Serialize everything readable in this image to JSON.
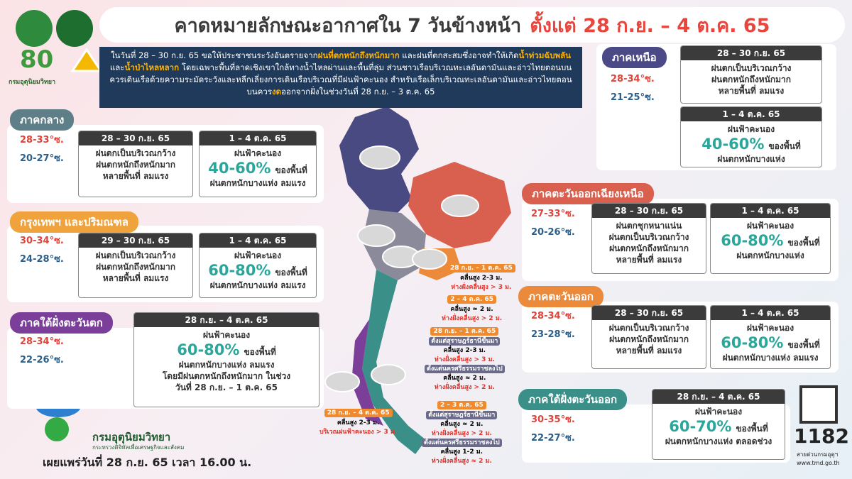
{
  "header": {
    "title": "คาดหมายลักษณะอากาศใน 7 วันข้างหน้า",
    "period": "ตั้งแต่ 28 ก.ย. – 4 ต.ค. 65",
    "logo_number": "80",
    "logo_caption": "กรมอุตุนิยมวิทยา"
  },
  "warning": {
    "segments": [
      {
        "text": "ในวันที่ 28 – 30 ก.ย. 65 ขอให้ประชาชนระวังอันตรายจาก",
        "highlight": false
      },
      {
        "text": "ฝนที่ตกหนักถึงหนักมาก",
        "highlight": true
      },
      {
        "text": " และฝนที่ตกสะสมซึ่งอาจทำให้เกิด",
        "highlight": false
      },
      {
        "text": "น้ำท่วมฉับพลัน",
        "highlight": true
      },
      {
        "text": "และ",
        "highlight": false
      },
      {
        "text": "น้ำป่าไหลหลาก",
        "highlight": true
      },
      {
        "text": " โดยเฉพาะพื้นที่ลาดเชิงเขาใกล้ทางน้ำไหลผ่านและพื้นที่ลุ่ม ส่วนชาวเรือบริเวณทะเลอันดามันและอ่าวไทยตอนบน ควรเดินเรือด้วยความระมัดระวังและหลีกเลี่ยงการเดินเรือบริเวณที่มีฝนฟ้าคะนอง สำหรับเรือเล็กบริเวณทะเลอันดามันและอ่าวไทยตอนบนควร",
        "highlight": false
      },
      {
        "text": "งด",
        "highlight": true
      },
      {
        "text": "ออกจากฝั่งในช่วงวันที่ 28 ก.ย. – 3 ต.ค. 65",
        "highlight": false
      }
    ]
  },
  "regions": [
    {
      "name": "ภาคเหนือ",
      "color": "#4b4a86",
      "temp_max": "28-34°ซ.",
      "temp_min": "21-25°ซ.",
      "forecasts": [
        {
          "period": "28 – 30 ก.ย. 65",
          "lines": [
            "ฝนตกเป็นบริเวณกว้าง",
            "ฝนตกหนักถึงหนักมาก",
            "หลายพื้นที่ ลมแรง"
          ]
        },
        {
          "period": "1 – 4 ต.ค. 65",
          "lines": [
            "ฝนฟ้าคะนอง"
          ],
          "percent": "40-60%",
          "percent_suffix": "ของพื้นที่",
          "notes": [
            "ฝนตกหนักบางแห่ง"
          ]
        }
      ]
    },
    {
      "name": "ภาคกลาง",
      "color": "#5f7f88",
      "temp_max": "28-33°ซ.",
      "temp_min": "20-27°ซ.",
      "forecasts": [
        {
          "period": "28 – 30 ก.ย. 65",
          "lines": [
            "ฝนตกเป็นบริเวณกว้าง",
            "ฝนตกหนักถึงหนักมาก",
            "หลายพื้นที่ ลมแรง"
          ]
        },
        {
          "period": "1 – 4 ต.ค. 65",
          "lines": [
            "ฝนฟ้าคะนอง"
          ],
          "percent": "40-60%",
          "percent_suffix": "ของพื้นที่",
          "notes": [
            "ฝนตกหนักบางแห่ง ลมแรง"
          ]
        }
      ]
    },
    {
      "name": "กรุงเทพฯ และปริมณฑล",
      "color": "#f0a23c",
      "temp_max": "30-34°ซ.",
      "temp_min": "24-28°ซ.",
      "forecasts": [
        {
          "period": "29 – 30 ก.ย. 65",
          "lines": [
            "ฝนตกเป็นบริเวณกว้าง",
            "ฝนตกหนักถึงหนักมาก",
            "หลายพื้นที่ ลมแรง"
          ]
        },
        {
          "period": "1 – 4 ต.ค. 65",
          "lines": [
            "ฝนฟ้าคะนอง"
          ],
          "percent": "60-80%",
          "percent_suffix": "ของพื้นที่",
          "notes": [
            "ฝนตกหนักบางแห่ง ลมแรง"
          ]
        }
      ]
    },
    {
      "name": "ภาคใต้ฝั่งตะวันตก",
      "color": "#7b3f99",
      "temp_max": "28-34°ซ.",
      "temp_min": "22-26°ซ.",
      "forecasts": [
        {
          "period": "28 ก.ย. – 4 ต.ค. 65",
          "lines": [
            "ฝนฟ้าคะนอง"
          ],
          "percent": "60-80%",
          "percent_suffix": "ของพื้นที่",
          "notes": [
            "ฝนตกหนักบางแห่ง ลมแรง",
            "โดยมีฝนตกหนักถึงหนักมาก ในช่วง",
            "วันที่ 28 ก.ย. – 1 ต.ค. 65"
          ]
        }
      ]
    },
    {
      "name": "ภาคตะวันออกเฉียงเหนือ",
      "color": "#d9604f",
      "temp_max": "27-33°ซ.",
      "temp_min": "20-26°ซ.",
      "forecasts": [
        {
          "period": "28 – 30 ก.ย. 65",
          "lines": [
            "ฝนตกชุกหนาแน่น",
            "ฝนตกเป็นบริเวณกว้าง",
            "ฝนตกหนักถึงหนักมาก",
            "หลายพื้นที่ ลมแรง"
          ]
        },
        {
          "period": "1 – 4 ต.ค. 65",
          "lines": [
            "ฝนฟ้าคะนอง"
          ],
          "percent": "60-80%",
          "percent_suffix": "ของพื้นที่",
          "notes": [
            "ฝนตกหนักบางแห่ง"
          ]
        }
      ]
    },
    {
      "name": "ภาคตะวันออก",
      "color": "#ea8a3a",
      "temp_max": "28-34°ซ.",
      "temp_min": "23-28°ซ.",
      "forecasts": [
        {
          "period": "28 – 30 ก.ย. 65",
          "lines": [
            "ฝนตกเป็นบริเวณกว้าง",
            "ฝนตกหนักถึงหนักมาก",
            "หลายพื้นที่ ลมแรง"
          ]
        },
        {
          "period": "1 – 4 ต.ค. 65",
          "lines": [
            "ฝนฟ้าคะนอง"
          ],
          "percent": "60-80%",
          "percent_suffix": "ของพื้นที่",
          "notes": [
            "ฝนตกหนักบางแห่ง ลมแรง"
          ]
        }
      ]
    },
    {
      "name": "ภาคใต้ฝั่งตะวันออก",
      "color": "#3a8f88",
      "temp_max": "30-35°ซ.",
      "temp_min": "22-27°ซ.",
      "forecasts": [
        {
          "period": "28 ก.ย. – 4 ต.ค. 65",
          "lines": [
            "ฝนฟ้าคะนอง"
          ],
          "percent": "60-70%",
          "percent_suffix": "ของพื้นที่",
          "notes": [
            "ฝนตกหนักบางแห่ง ตลอดช่วง"
          ]
        }
      ]
    }
  ],
  "sea_notes": [
    {
      "title": "28 ก.ย. – 1 ต.ค. 65",
      "lines": [
        {
          "text": "คลื่นสูง 2-3 ม.",
          "kind": "wave"
        },
        {
          "text": "ห่างฝั่งคลื่นสูง > 3 ม.",
          "kind": "offshore"
        }
      ]
    },
    {
      "title": "2 – 4 ต.ค. 65",
      "lines": [
        {
          "text": "คลื่นสูง ≈ 2 ม.",
          "kind": "wave"
        },
        {
          "text": "ห่างฝั่งคลื่นสูง > 2 ม.",
          "kind": "offshore"
        }
      ]
    },
    {
      "title": "28 ก.ย. – 1 ต.ค. 65",
      "lines": [
        {
          "text": "ตั้งแต่สุราษฎร์ธานีขึ้นมา",
          "kind": "area"
        },
        {
          "text": "คลื่นสูง 2-3 ม.",
          "kind": "wave"
        },
        {
          "text": "ห่างฝั่งคลื่นสูง > 3 ม.",
          "kind": "offshore"
        },
        {
          "text": "ตั้งแต่นครศรีธรรมราชลงไป",
          "kind": "area"
        },
        {
          "text": "คลื่นสูง ≈ 2 ม.",
          "kind": "wave"
        },
        {
          "text": "ห่างฝั่งคลื่นสูง > 2 ม.",
          "kind": "offshore"
        }
      ]
    },
    {
      "title": "2 – 3 ต.ค. 65",
      "lines": [
        {
          "text": "ตั้งแต่สุราษฎร์ธานีขึ้นมา",
          "kind": "area"
        },
        {
          "text": "คลื่นสูง ≈ 2 ม.",
          "kind": "wave"
        },
        {
          "text": "ห่างฝั่งคลื่นสูง > 2 ม.",
          "kind": "offshore"
        },
        {
          "text": "ตั้งแต่นครศรีธรรมราชลงไป",
          "kind": "area"
        },
        {
          "text": "คลื่นสูง 1-2 ม.",
          "kind": "wave"
        },
        {
          "text": "ห่างฝั่งคลื่นสูง ≈ 2 ม.",
          "kind": "offshore"
        }
      ]
    },
    {
      "title": "28 ก.ย. – 4 ต.ค. 65",
      "lines": [
        {
          "text": "คลื่นสูง 2-3 ม.",
          "kind": "wave"
        },
        {
          "text": "บริเวณฝนฟ้าคะนอง > 3 ม.",
          "kind": "offshore"
        }
      ]
    }
  ],
  "footer": {
    "agency": "กรมอุตุนิยมวิทยา",
    "ministry": "กระทรวงดิจิทัลเพื่อเศรษฐกิจและสังคม",
    "published": "เผยแพร่วันที่ 28 ก.ย. 65 เวลา 16.00 น.",
    "hotline": "1182",
    "hotline_caption": "สายด่วนกรมอุตุฯ",
    "website": "www.tmd.go.th"
  }
}
